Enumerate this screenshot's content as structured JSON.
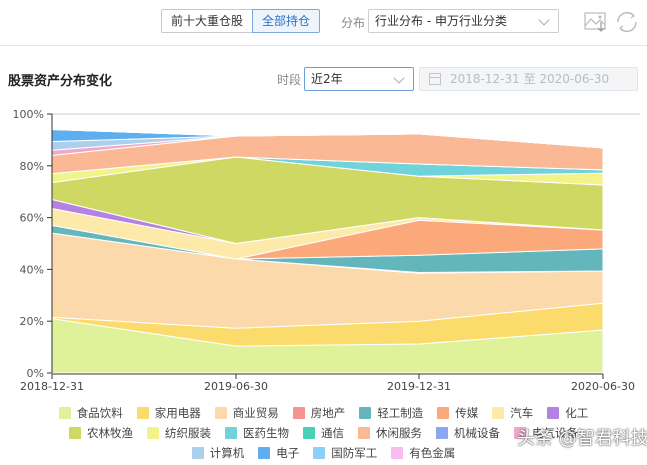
{
  "toolbar": {
    "tabs": [
      {
        "label": "前十大重仓股",
        "active": false
      },
      {
        "label": "全部持仓",
        "active": true
      }
    ],
    "distribution_label": "分布",
    "distribution_select": "行业分布 - 申万行业分类",
    "icons": [
      "download-image-icon",
      "refresh-icon"
    ]
  },
  "section": {
    "title": "股票资产分布变化",
    "period_label": "时段",
    "period_select": "近2年",
    "date_range": "2018-12-31 至 2020-06-30"
  },
  "chart_data": {
    "type": "area",
    "stacked": true,
    "title": "股票资产分布变化",
    "xlabel": "",
    "ylabel": "",
    "ylim": [
      0,
      100
    ],
    "y_ticks": [
      "0%",
      "20%",
      "40%",
      "60%",
      "80%",
      "100%"
    ],
    "categories": [
      "2018-12-31",
      "2019-06-30",
      "2019-12-31",
      "2020-06-30"
    ],
    "grid": false,
    "legend_position": "bottom",
    "series": [
      {
        "name": "食品饮料",
        "color": "#dff29a",
        "values": [
          21.0,
          10.4,
          11.2,
          16.6
        ]
      },
      {
        "name": "家用电器",
        "color": "#fbdb6c",
        "values": [
          0.5,
          6.9,
          8.8,
          10.4
        ]
      },
      {
        "name": "商业贸易",
        "color": "#fbd9ab",
        "values": [
          32.5,
          26.7,
          18.5,
          12.4
        ]
      },
      {
        "name": "房地产",
        "color": "#f59393",
        "values": [
          0.0,
          0.0,
          0.3,
          0.0
        ]
      },
      {
        "name": "轻工制造",
        "color": "#63b6bc",
        "values": [
          3.0,
          0.0,
          6.7,
          8.5
        ]
      },
      {
        "name": "传媒",
        "color": "#fba97b",
        "values": [
          0.0,
          0.0,
          13.5,
          7.3
        ]
      },
      {
        "name": "汽车",
        "color": "#fde9a9",
        "values": [
          6.5,
          6.0,
          1.0,
          0.0
        ]
      },
      {
        "name": "化工",
        "color": "#b682e2",
        "values": [
          3.5,
          0.0,
          0.0,
          0.0
        ]
      },
      {
        "name": "农林牧渔",
        "color": "#cfd863",
        "values": [
          6.5,
          33.4,
          16.0,
          17.4
        ]
      },
      {
        "name": "纺织服装",
        "color": "#f2f38a",
        "values": [
          3.5,
          0.0,
          0.0,
          4.6
        ]
      },
      {
        "name": "医药生物",
        "color": "#70d2da",
        "values": [
          0.0,
          0.0,
          4.7,
          1.2
        ]
      },
      {
        "name": "通信",
        "color": "#49d1b5",
        "values": [
          0.0,
          0.0,
          0.0,
          0.0
        ]
      },
      {
        "name": "休闲服务",
        "color": "#fbb895",
        "values": [
          7.0,
          8.1,
          11.6,
          8.5
        ]
      },
      {
        "name": "机械设备",
        "color": "#8ca6f0",
        "values": [
          0.0,
          0.0,
          0.0,
          0.0
        ]
      },
      {
        "name": "电气设备",
        "color": "#f1a7c9",
        "values": [
          2.0,
          0.0,
          0.0,
          0.0
        ]
      },
      {
        "name": "计算机",
        "color": "#acd0ec",
        "values": [
          3.4,
          0.0,
          0.0,
          0.0
        ]
      },
      {
        "name": "电子",
        "color": "#5eaef0",
        "values": [
          4.6,
          0.0,
          0.0,
          0.0
        ]
      },
      {
        "name": "国防军工",
        "color": "#8ccff8",
        "values": [
          0.0,
          0.0,
          0.0,
          0.0
        ]
      },
      {
        "name": "有色金属",
        "color": "#f9bcf1",
        "values": [
          0.0,
          0.0,
          0.0,
          0.0
        ]
      }
    ]
  },
  "legend_rows": [
    [
      0,
      1,
      2,
      3,
      4,
      5,
      6,
      7
    ],
    [
      8,
      9,
      10,
      11,
      12,
      13,
      14
    ],
    [
      15,
      16,
      17,
      18
    ]
  ],
  "watermark": "头条 @智君科技"
}
